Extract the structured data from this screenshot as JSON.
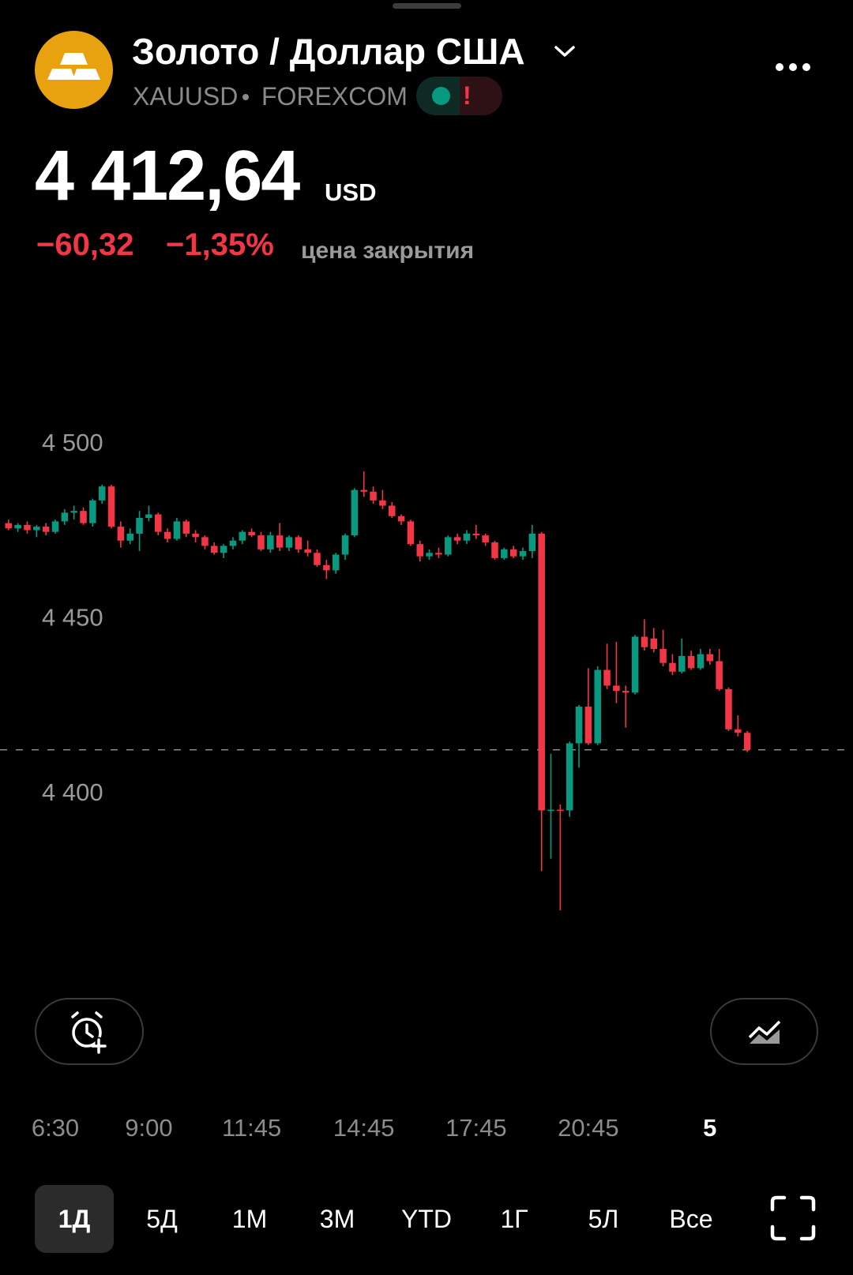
{
  "header": {
    "title": "Золото / Доллар США",
    "symbol": "XAUUSD",
    "exchange": "FOREXCOM",
    "alert": "!",
    "price": "4 412,64",
    "currency": "USD",
    "change": "−60,32",
    "change_percent": "−1,35%",
    "status": "цена закрытия"
  },
  "chart_data": {
    "type": "candlestick",
    "up_color": "#089981",
    "down_color": "#f23645",
    "last_price_line": true,
    "x": [
      "5:15",
      "5:30",
      "5:45",
      "6:00",
      "6:15",
      "6:30",
      "6:45",
      "7:00",
      "7:15",
      "7:30",
      "7:45",
      "8:00",
      "8:15",
      "8:30",
      "8:45",
      "9:00",
      "9:15",
      "9:30",
      "9:45",
      "10:00",
      "10:15",
      "10:30",
      "10:45",
      "11:00",
      "11:15",
      "11:30",
      "11:45",
      "12:00",
      "12:15",
      "12:30",
      "12:45",
      "13:00",
      "13:15",
      "13:30",
      "13:45",
      "14:00",
      "14:15",
      "14:30",
      "14:45",
      "15:00",
      "15:15",
      "15:30",
      "15:45",
      "16:00",
      "16:15",
      "16:30",
      "16:45",
      "17:00",
      "17:15",
      "17:30",
      "17:45",
      "18:00",
      "18:15",
      "18:30",
      "18:45",
      "19:00",
      "19:15",
      "19:30",
      "19:45",
      "20:00",
      "20:15",
      "20:30",
      "20:45",
      "21:00",
      "21:15",
      "21:30",
      "21:45",
      "22:00",
      "22:15",
      "22:30",
      "22:45",
      "23:00",
      "23:15",
      "23:30",
      "23:45",
      "0:00",
      "0:15",
      "0:30",
      "0:45",
      "1:00"
    ],
    "open": [
      4477.5,
      4476.0,
      4477.0,
      4475.5,
      4476.5,
      4475.0,
      4478.0,
      4480.5,
      4481.0,
      4477.5,
      4484.0,
      4488.0,
      4476.5,
      4472.5,
      4474.5,
      4479.0,
      4480.0,
      4475.0,
      4473.0,
      4478.0,
      4474.5,
      4473.5,
      4471.0,
      4469.0,
      4471.0,
      4472.5,
      4475.0,
      4474.0,
      4470.0,
      4474.0,
      4470.5,
      4473.5,
      4470.0,
      4469.0,
      4465.5,
      4464.0,
      4468.5,
      4474.0,
      4487.0,
      4486.5,
      4484.0,
      4482.5,
      4479.5,
      4478.0,
      4471.5,
      4468.0,
      4469.0,
      4468.5,
      4473.5,
      4472.5,
      4474.5,
      4474.0,
      4472.0,
      4467.5,
      4470.0,
      4468.0,
      4469.5,
      4474.5,
      4395.3,
      4395.5,
      4395.3,
      4414.5,
      4425.0,
      4414.5,
      4435.5,
      4431.0,
      4429.5,
      4429.0,
      4445.0,
      4444.5,
      4441.5,
      4437.5,
      4435.0,
      4439.5,
      4436.0,
      4440.0,
      4438.0,
      4430.0,
      4418.5,
      4417.5
    ],
    "high": [
      4478.5,
      4477.5,
      4478.0,
      4477.0,
      4477.5,
      4478.5,
      4481.5,
      4482.5,
      4482.0,
      4484.5,
      4488.5,
      4488.5,
      4478.0,
      4476.0,
      4481.0,
      4482.5,
      4480.5,
      4476.0,
      4479.0,
      4478.5,
      4475.5,
      4474.0,
      4472.0,
      4471.5,
      4473.5,
      4475.5,
      4476.0,
      4475.0,
      4475.0,
      4477.5,
      4474.0,
      4474.0,
      4472.5,
      4470.0,
      4467.0,
      4469.0,
      4474.5,
      4487.5,
      4492.3,
      4488.0,
      4487.0,
      4483.5,
      4480.0,
      4478.5,
      4472.5,
      4470.0,
      4470.5,
      4474.0,
      4474.5,
      4475.5,
      4477.0,
      4474.5,
      4472.5,
      4470.5,
      4471.0,
      4470.5,
      4477.0,
      4475.0,
      4411.5,
      4397.0,
      4415.0,
      4425.5,
      4436.0,
      4436.5,
      4443.0,
      4443.5,
      4431.0,
      4445.5,
      4450.0,
      4447.5,
      4447.0,
      4440.0,
      4444.5,
      4441.0,
      4441.5,
      4441.5,
      4441.5,
      4430.5,
      4422.5,
      4418.0
    ],
    "low": [
      4475.5,
      4475.0,
      4474.5,
      4473.5,
      4474.0,
      4474.5,
      4477.0,
      4478.5,
      4477.0,
      4476.5,
      4483.0,
      4476.0,
      4470.5,
      4471.5,
      4469.5,
      4478.0,
      4474.0,
      4472.0,
      4472.5,
      4473.5,
      4472.0,
      4470.0,
      4468.5,
      4467.5,
      4470.0,
      4471.5,
      4473.5,
      4469.5,
      4469.0,
      4469.5,
      4469.5,
      4469.0,
      4468.0,
      4465.0,
      4461.5,
      4463.0,
      4467.0,
      4473.5,
      4485.0,
      4483.0,
      4481.5,
      4479.0,
      4477.0,
      4471.0,
      4466.5,
      4467.0,
      4467.5,
      4468.0,
      4471.5,
      4471.5,
      4473.0,
      4471.0,
      4467.0,
      4467.0,
      4467.5,
      4467.0,
      4467.5,
      4377.9,
      4381.5,
      4366.7,
      4393.5,
      4407.5,
      4414.0,
      4414.0,
      4430.0,
      4426.0,
      4419.0,
      4428.5,
      4441.0,
      4440.5,
      4436.5,
      4434.0,
      4434.5,
      4435.5,
      4435.5,
      4437.0,
      4429.5,
      4418.0,
      4416.5,
      4412.0
    ],
    "close": [
      4476.0,
      4477.0,
      4475.5,
      4476.5,
      4475.0,
      4478.0,
      4480.5,
      4481.0,
      4477.5,
      4484.0,
      4488.0,
      4476.5,
      4472.5,
      4474.5,
      4479.0,
      4480.0,
      4475.0,
      4473.0,
      4478.0,
      4474.5,
      4473.5,
      4471.0,
      4469.0,
      4471.0,
      4472.5,
      4475.0,
      4474.0,
      4470.0,
      4474.0,
      4470.5,
      4473.5,
      4470.0,
      4469.0,
      4465.5,
      4464.0,
      4468.5,
      4474.0,
      4487.0,
      4486.5,
      4484.0,
      4482.5,
      4479.5,
      4478.0,
      4471.5,
      4468.0,
      4469.0,
      4468.5,
      4473.5,
      4472.5,
      4474.5,
      4474.0,
      4472.0,
      4467.5,
      4470.0,
      4468.0,
      4469.5,
      4474.5,
      4395.3,
      4395.5,
      4395.3,
      4414.5,
      4425.0,
      4414.5,
      4435.5,
      4431.0,
      4429.5,
      4429.0,
      4445.0,
      4442.0,
      4441.5,
      4437.5,
      4435.0,
      4439.5,
      4436.0,
      4440.0,
      4438.0,
      4430.0,
      4418.5,
      4417.5,
      4412.64
    ],
    "ylim": [
      4350,
      4540
    ],
    "yticks": [
      {
        "value": 4400,
        "label": "4 400"
      },
      {
        "value": 4450,
        "label": "4 450"
      },
      {
        "value": 4500,
        "label": "4 500"
      }
    ],
    "xticks": [
      "6:30",
      "9:00",
      "11:45",
      "14:45",
      "17:45",
      "20:45",
      {
        "value": "0:00",
        "label": "5"
      }
    ]
  },
  "timeframes": [
    "1Д",
    "5Д",
    "1М",
    "3М",
    "YTD",
    "1Г",
    "5Л",
    "Все"
  ],
  "selected_timeframe": 0
}
